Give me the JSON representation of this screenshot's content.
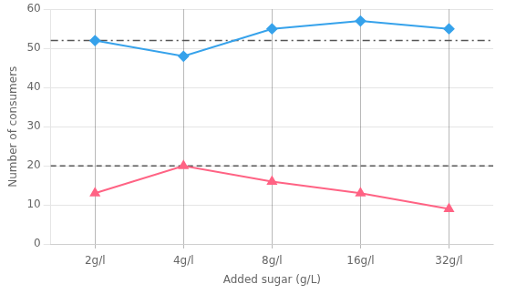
{
  "chart_data": {
    "type": "line",
    "categories": [
      "2g/l",
      "4g/l",
      "8g/l",
      "16g/l",
      "32g/l"
    ],
    "series": [
      {
        "values": [
          52,
          48,
          55,
          57,
          55
        ],
        "marker": "diamond",
        "line_style": "solid"
      },
      {
        "values": [
          13,
          20,
          16,
          13,
          9
        ],
        "marker": "triangle",
        "line_style": "solid"
      }
    ],
    "reference_lines": [
      {
        "value": 52,
        "line_style": "dashdot"
      },
      {
        "value": 20,
        "line_style": "dashed"
      }
    ],
    "xlabel": "Added sugar (g/L)",
    "ylabel": "Number of consumers",
    "ylim": [
      0,
      60
    ],
    "yticks": [
      0,
      10,
      20,
      30,
      40,
      50,
      60
    ],
    "grid": true
  }
}
